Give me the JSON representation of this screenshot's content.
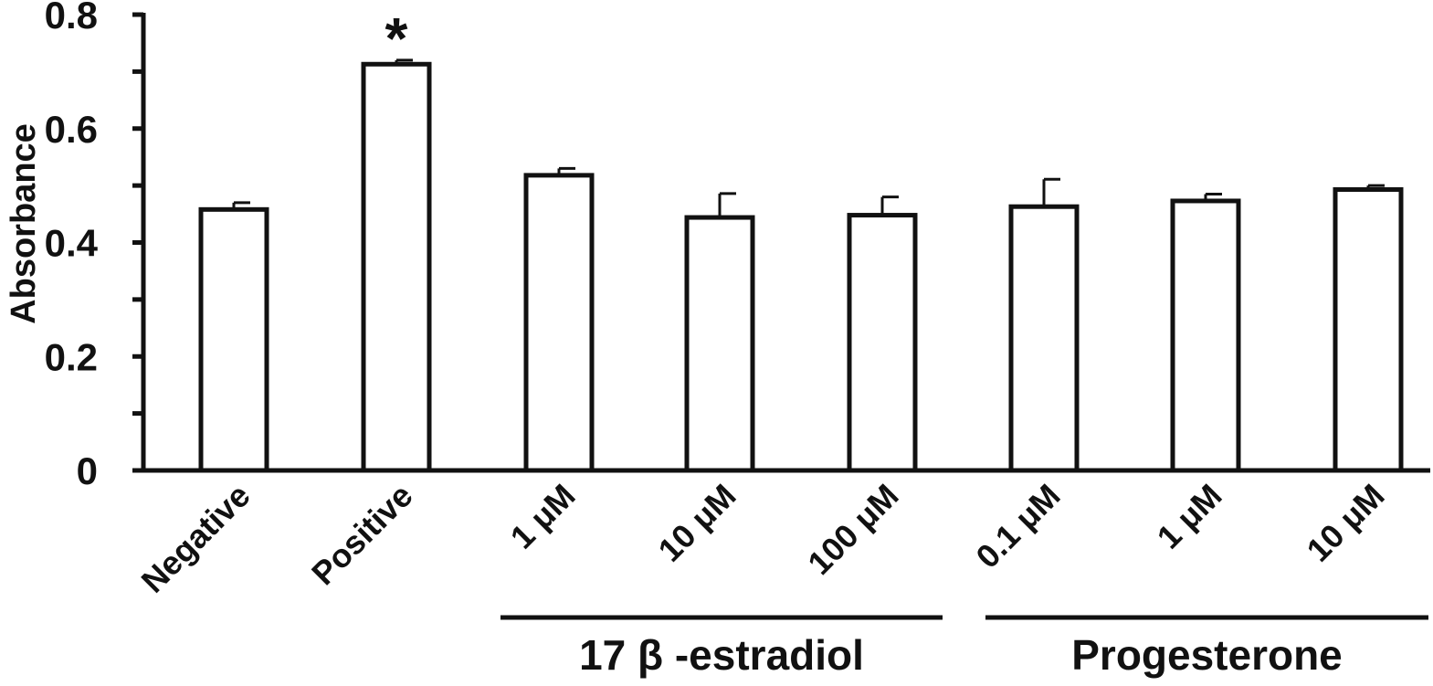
{
  "chart_data": {
    "type": "bar",
    "title": "",
    "xlabel": "",
    "ylabel": "Absorbance",
    "ylim": [
      0,
      0.8
    ],
    "yticks": [
      0,
      0.2,
      0.4,
      0.6,
      0.8
    ],
    "ytick_labels": [
      "0",
      "0.2",
      "0.4",
      "0.6",
      "0.8"
    ],
    "minor_ticks": true,
    "grid": false,
    "legend": "none",
    "categories": [
      "Negative",
      "Positive",
      "1 μM",
      "10 μM",
      "100 μM",
      "0.1 μM",
      "1 μM",
      "10 μM"
    ],
    "values": [
      0.458,
      0.713,
      0.518,
      0.444,
      0.448,
      0.463,
      0.473,
      0.493
    ],
    "errors": [
      0.012,
      0.007,
      0.012,
      0.042,
      0.032,
      0.048,
      0.012,
      0.007
    ],
    "annotations": [
      {
        "category_index": 1,
        "text": "*"
      }
    ],
    "groups": [
      {
        "label": "17 β -estradiol",
        "category_indices": [
          2,
          3,
          4
        ]
      },
      {
        "label": "Progesterone",
        "category_indices": [
          5,
          6,
          7
        ]
      }
    ],
    "colors": {
      "bar_fill": "#ffffff",
      "bar_stroke": "#111111",
      "axis": "#111111"
    }
  }
}
